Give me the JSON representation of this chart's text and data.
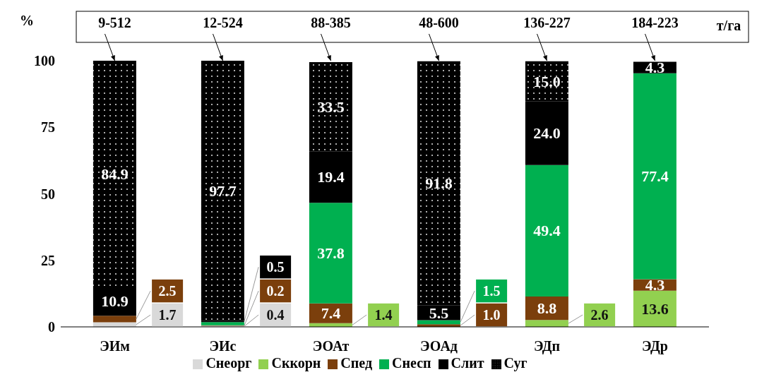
{
  "chart_data": {
    "type": "bar",
    "stacked": true,
    "ylabel": "%",
    "categories": [
      "ЭИм",
      "ЭИс",
      "ЭОАт",
      "ЭОАд",
      "ЭДп",
      "ЭДр"
    ],
    "series": [
      {
        "name": "Снеорг",
        "color": "#d9d9d9",
        "values": [
          1.7,
          0.4,
          null,
          null,
          null,
          null
        ],
        "value_labels": [
          "1.7",
          "0.4",
          null,
          null,
          null,
          null
        ]
      },
      {
        "name": "Сккорн",
        "color": "#92d050",
        "values": [
          null,
          null,
          1.4,
          null,
          2.6,
          13.6
        ],
        "value_labels": [
          null,
          null,
          "1.4",
          null,
          "2.6",
          "13.6"
        ]
      },
      {
        "name": "Спед",
        "color": "#7b3f0c",
        "values": [
          2.5,
          0.2,
          7.4,
          1.0,
          8.8,
          4.3
        ],
        "value_labels": [
          "2.5",
          "0.2",
          "7.4",
          "1.0",
          "8.8",
          "4.3"
        ]
      },
      {
        "name": "Снесп",
        "color": "#00b050",
        "values": [
          null,
          1.2,
          37.8,
          1.5,
          49.4,
          77.4
        ],
        "value_labels": [
          null,
          null,
          "37.8",
          "1.5",
          "49.4",
          "77.4"
        ]
      },
      {
        "name": "Слит",
        "color": "#000000",
        "values": [
          10.9,
          0.5,
          19.4,
          5.5,
          24.0,
          4.3
        ],
        "value_labels": [
          "10.9",
          "0.5",
          "19.4",
          "5.5",
          "24.0",
          "4.3"
        ]
      },
      {
        "name": "Суг",
        "color": "#000000",
        "values": [
          84.9,
          97.7,
          33.5,
          91.8,
          15.0,
          null
        ],
        "value_labels": [
          "84.9",
          "97.7",
          "33.5",
          "91.8",
          "15.0",
          null
        ]
      }
    ],
    "ylim": [
      0,
      100
    ],
    "yticks": [
      0,
      25,
      50,
      75,
      100
    ],
    "grid": false,
    "legend": "bottom",
    "annotations": [
      {
        "text": "9-512",
        "x": "ЭИм",
        "y": 100
      },
      {
        "text": "12-524",
        "x": "ЭИс",
        "y": 100
      },
      {
        "text": "88-385",
        "x": "ЭОАт",
        "y": 100
      },
      {
        "text": "48-600",
        "x": "ЭОАд",
        "y": 100
      },
      {
        "text": "136-227",
        "x": "ЭДп",
        "y": 100
      },
      {
        "text": "184-223",
        "x": "ЭДр",
        "y": 100
      },
      "т/га"
    ]
  }
}
